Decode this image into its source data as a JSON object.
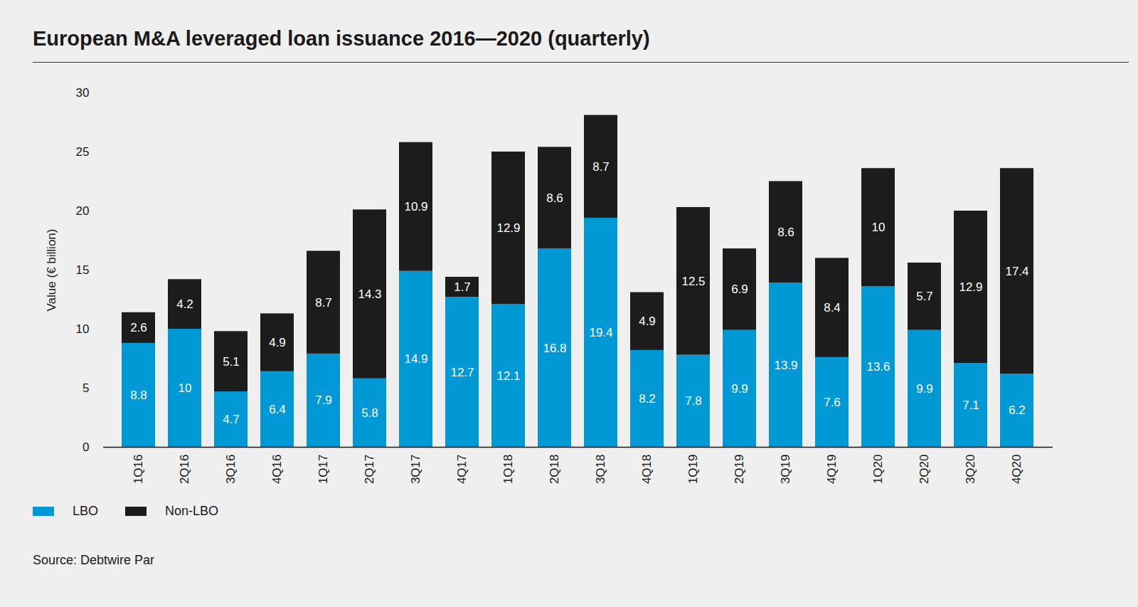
{
  "chart_data": {
    "type": "bar",
    "title": "European M&A leveraged loan issuance 2016—2020 (quarterly)",
    "y_label": "Value (€ billion)",
    "source": "Source: Debtwire Par",
    "categories": [
      "1Q16",
      "2Q16",
      "3Q16",
      "4Q16",
      "1Q17",
      "2Q17",
      "3Q17",
      "4Q17",
      "1Q18",
      "2Q18",
      "3Q18",
      "4Q18",
      "1Q19",
      "2Q19",
      "3Q19",
      "4Q19",
      "1Q20",
      "2Q20",
      "3Q20",
      "4Q20"
    ],
    "series": [
      {
        "name": "LBO",
        "color": "#0099d5",
        "values": [
          8.8,
          10,
          4.7,
          6.4,
          7.9,
          5.8,
          14.9,
          12.7,
          12.1,
          16.8,
          19.4,
          8.2,
          7.8,
          9.9,
          13.9,
          7.6,
          13.6,
          9.9,
          7.1,
          6.2
        ]
      },
      {
        "name": "Non-LBO",
        "color": "#1c1c1c",
        "values": [
          2.6,
          4.2,
          5.1,
          4.9,
          8.7,
          14.3,
          10.9,
          1.7,
          12.9,
          8.6,
          8.7,
          4.9,
          12.5,
          6.9,
          8.6,
          8.4,
          10,
          5.7,
          12.9,
          17.4
        ]
      }
    ],
    "ylim": [
      0,
      30
    ],
    "yticks": [
      0,
      5,
      10,
      15,
      20,
      25,
      30
    ],
    "grid": false,
    "stacked": true,
    "data_labels": true,
    "legend": "bottom-left"
  }
}
